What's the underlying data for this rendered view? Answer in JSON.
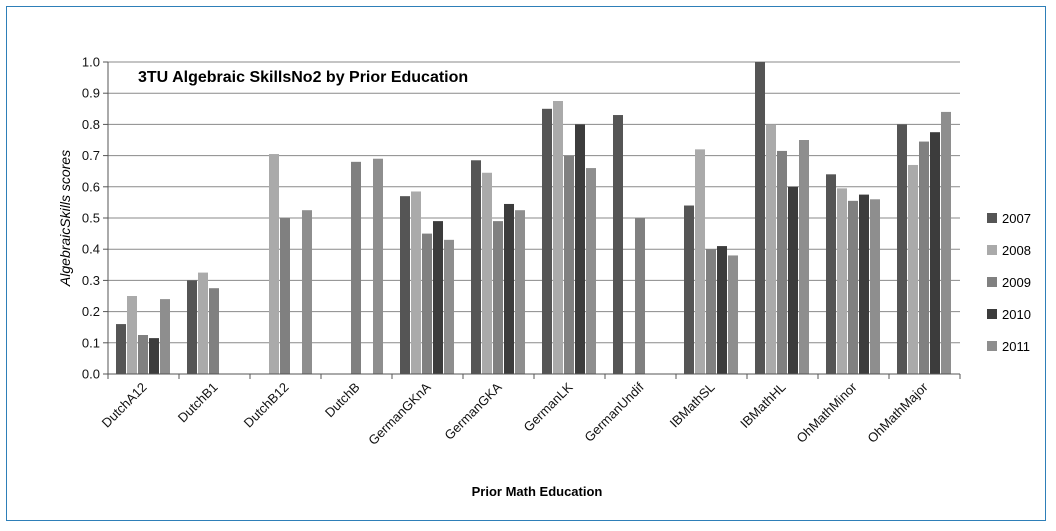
{
  "chart_data": {
    "type": "bar",
    "title": "3TU Algebraic SkillsNo2 by Prior Education",
    "xlabel": "Prior Math Education",
    "ylabel": "AlgebraicSkills scores",
    "ylim": [
      0,
      1.0
    ],
    "yticks": [
      "0.0",
      "0.1",
      "0.2",
      "0.3",
      "0.4",
      "0.5",
      "0.6",
      "0.7",
      "0.8",
      "0.9",
      "1.0"
    ],
    "grid": true,
    "legend_position": "right",
    "categories": [
      "DutchA12",
      "DutchB1",
      "DutchB12",
      "DutchB",
      "GermanGKnA",
      "GermanGKA",
      "GermanLK",
      "GermanUndif",
      "IBMathSL",
      "IBMathHL",
      "OhMathMinor",
      "OhMathMajor"
    ],
    "series": [
      {
        "name": "2007",
        "color": "#555555",
        "values": [
          0.16,
          0.3,
          null,
          null,
          0.57,
          0.685,
          0.85,
          0.83,
          0.54,
          1.0,
          0.64,
          0.8
        ]
      },
      {
        "name": "2008",
        "color": "#aaaaaa",
        "values": [
          0.25,
          0.325,
          0.705,
          null,
          0.585,
          0.645,
          0.875,
          null,
          0.72,
          0.8,
          0.595,
          0.67
        ]
      },
      {
        "name": "2009",
        "color": "#808080",
        "values": [
          0.125,
          0.275,
          0.5,
          0.68,
          0.45,
          0.49,
          0.7,
          0.5,
          0.4,
          0.715,
          0.555,
          0.745
        ]
      },
      {
        "name": "2010",
        "color": "#3c3c3c",
        "values": [
          0.115,
          null,
          null,
          null,
          0.49,
          0.545,
          0.8,
          null,
          0.41,
          0.6,
          0.575,
          0.775
        ]
      },
      {
        "name": "2011",
        "color": "#8e8e8e",
        "values": [
          0.24,
          null,
          0.525,
          0.69,
          0.43,
          0.525,
          0.66,
          null,
          0.38,
          0.75,
          0.56,
          0.84
        ]
      }
    ]
  }
}
